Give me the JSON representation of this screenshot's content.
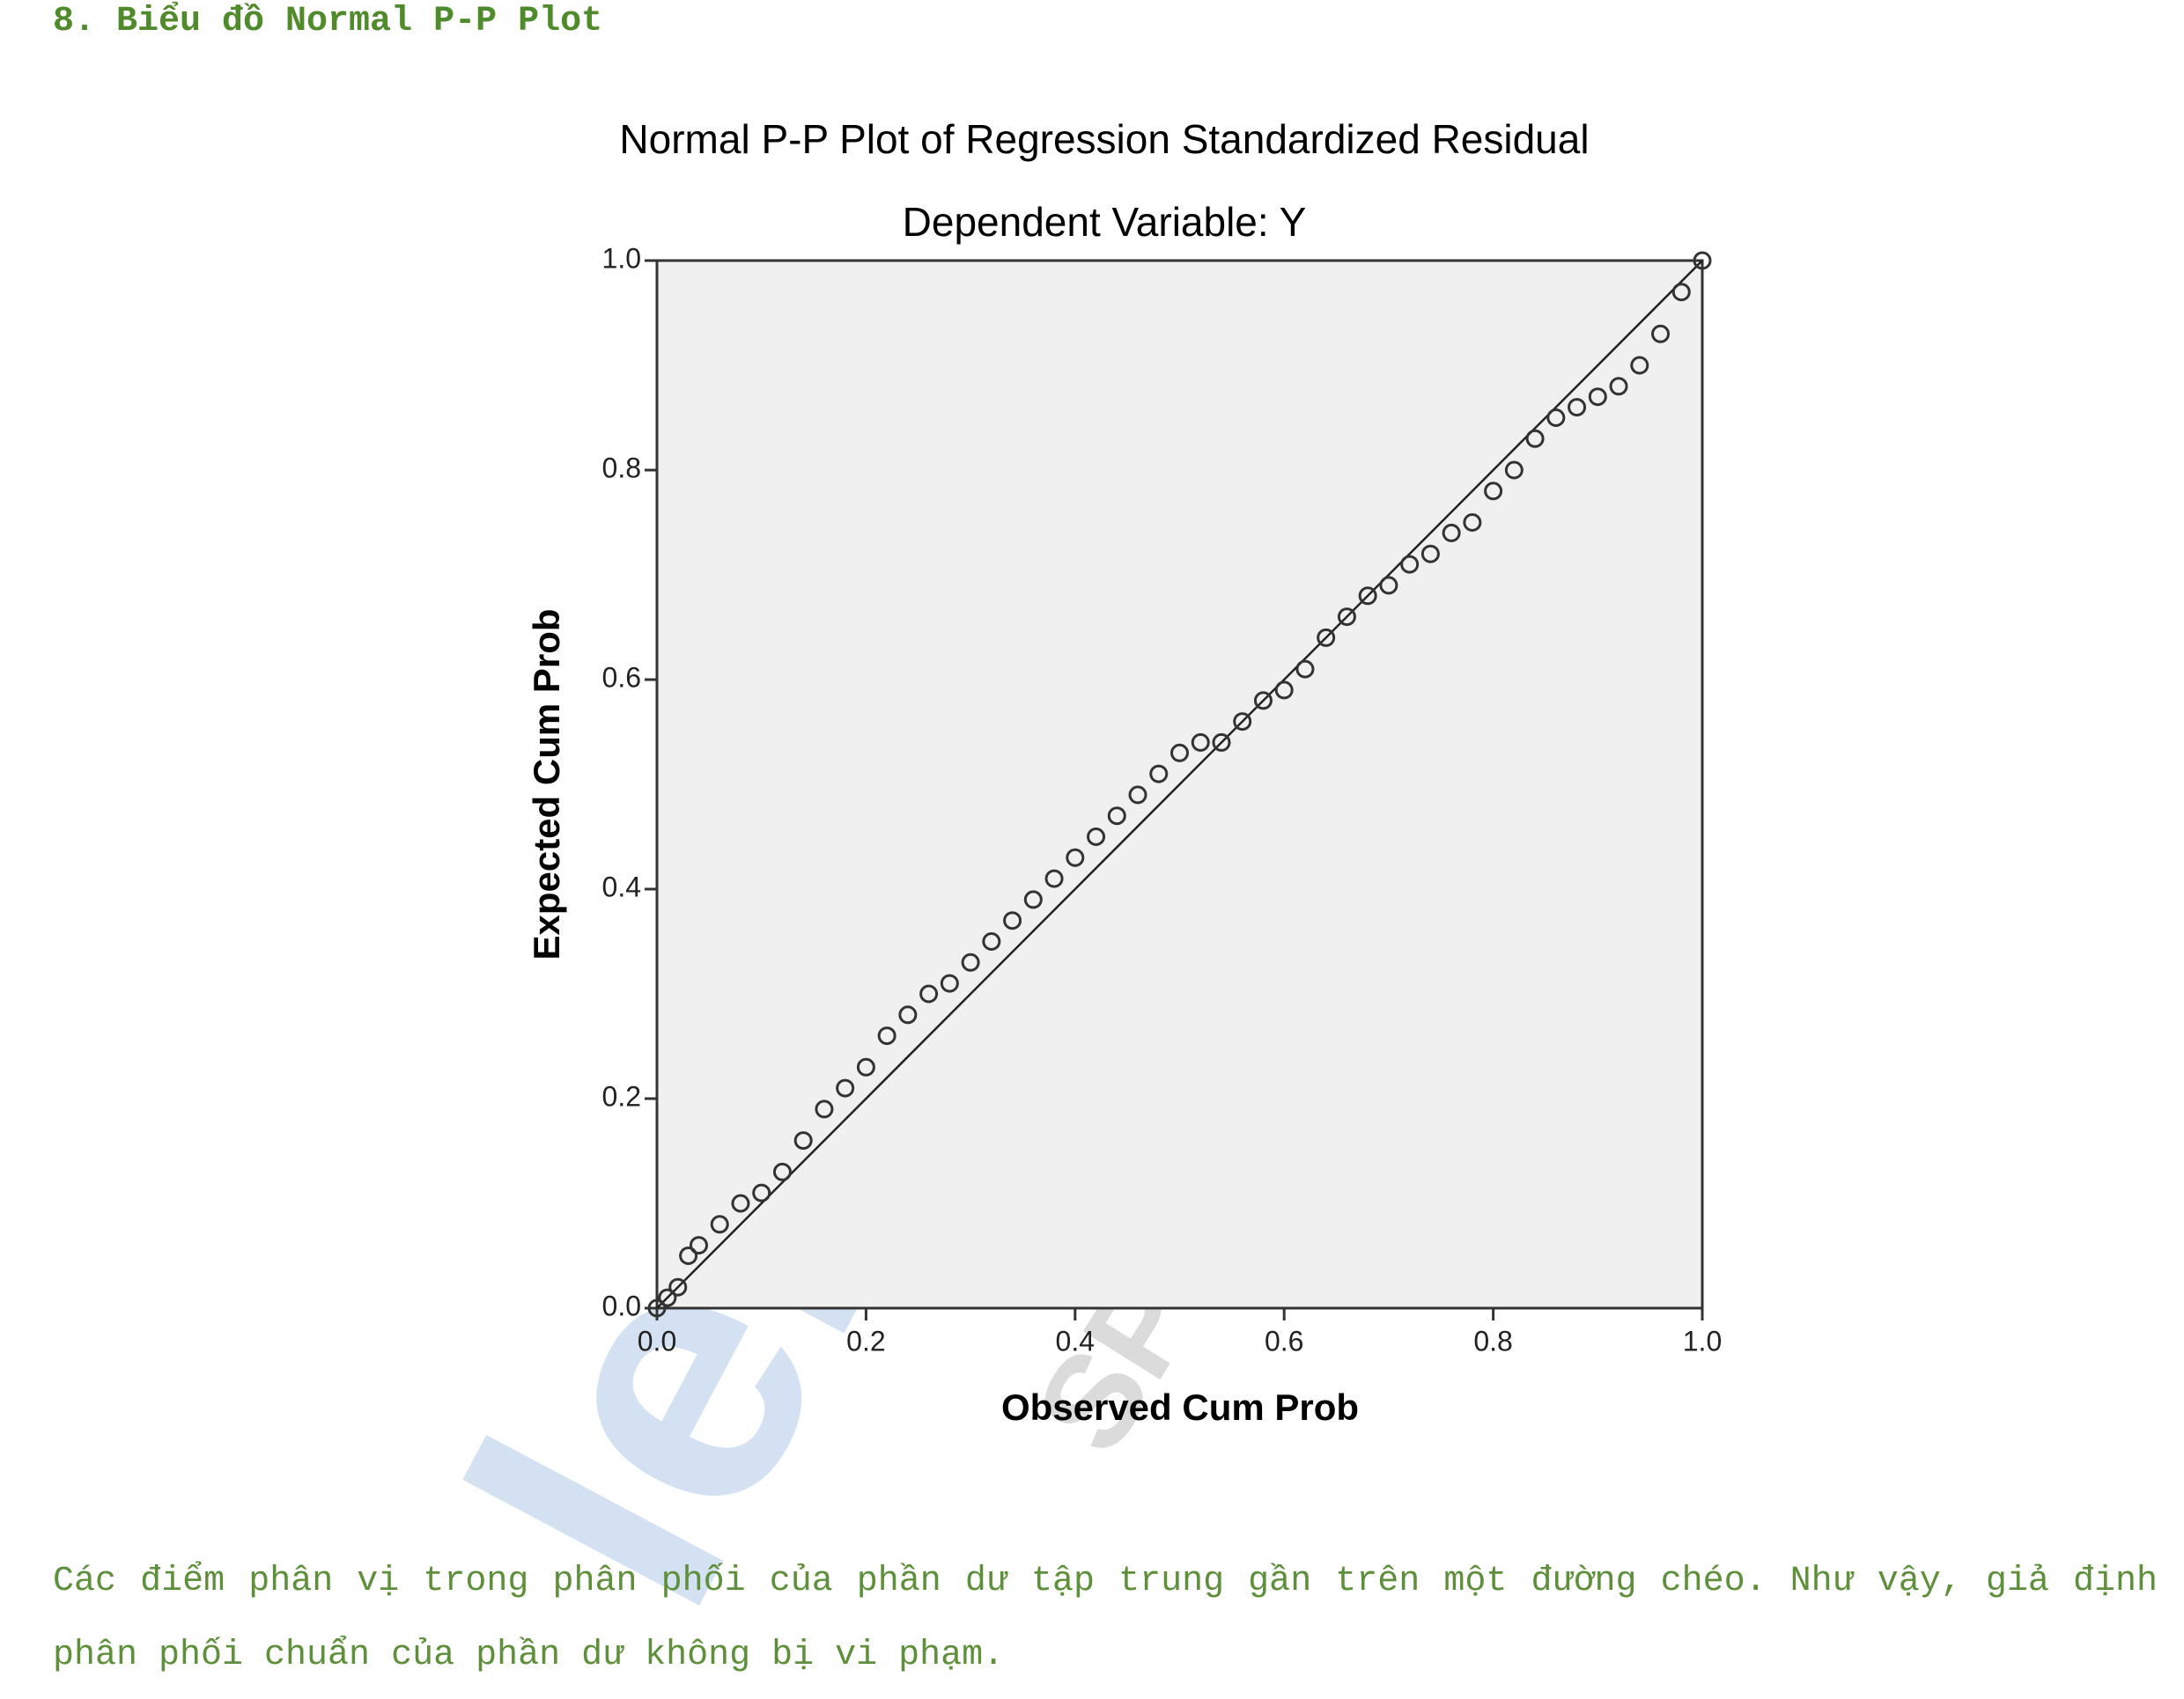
{
  "heading": "8. Biểu đồ Normal P-P Plot",
  "watermark": {
    "brand": "leminh",
    "tagline": "SPSS & AMOS"
  },
  "chart_data": {
    "type": "scatter",
    "title": "Normal P-P Plot of Regression Standardized Residual",
    "subtitle": "Dependent Variable: Y",
    "x_label": "Observed Cum Prob",
    "y_label": "Expected Cum Prob",
    "xlim": [
      0,
      1
    ],
    "ylim": [
      0,
      1
    ],
    "xticks": [
      {
        "value": 0,
        "label": "0.0"
      },
      0.2,
      0.4,
      0.6,
      0.8,
      {
        "value": 1,
        "label": "1.0"
      }
    ],
    "yticks": [
      {
        "value": 0,
        "label": "0.0"
      },
      0.2,
      0.4,
      0.6,
      0.8,
      {
        "value": 1,
        "label": "1.0"
      }
    ],
    "reference_line": true,
    "color": "#333333",
    "x": [
      0,
      0.01,
      0.02,
      0.03,
      0.04,
      0.06,
      0.08,
      0.1,
      0.12,
      0.14,
      0.16,
      0.18,
      0.2,
      0.22,
      0.24,
      0.26,
      0.28,
      0.3,
      0.32,
      0.34,
      0.36,
      0.38,
      0.4,
      0.42,
      0.44,
      0.46,
      0.48,
      0.5,
      0.52,
      0.54,
      0.56,
      0.58,
      0.6,
      0.62,
      0.64,
      0.66,
      0.68,
      0.7,
      0.72,
      0.74,
      0.76,
      0.78,
      0.8,
      0.82,
      0.84,
      0.86,
      0.88,
      0.9,
      0.92,
      0.94,
      0.96,
      0.98,
      1
    ],
    "values": [
      0,
      0.01,
      0.02,
      0.05,
      0.06,
      0.08,
      0.1,
      0.11,
      0.13,
      0.16,
      0.19,
      0.21,
      0.23,
      0.26,
      0.28,
      0.3,
      0.31,
      0.33,
      0.35,
      0.37,
      0.39,
      0.41,
      0.43,
      0.45,
      0.47,
      0.49,
      0.51,
      0.53,
      0.54,
      0.54,
      0.56,
      0.58,
      0.59,
      0.61,
      0.64,
      0.66,
      0.68,
      0.69,
      0.71,
      0.72,
      0.74,
      0.75,
      0.78,
      0.8,
      0.83,
      0.85,
      0.86,
      0.87,
      0.88,
      0.9,
      0.93,
      0.97,
      1
    ]
  },
  "paragraph": "Các điểm phân vị trong phân phối của phần dư tập trung gần trên một đường chéo. Như vậy, giả định phân phối chuẩn của phần dư không bị vi phạm."
}
